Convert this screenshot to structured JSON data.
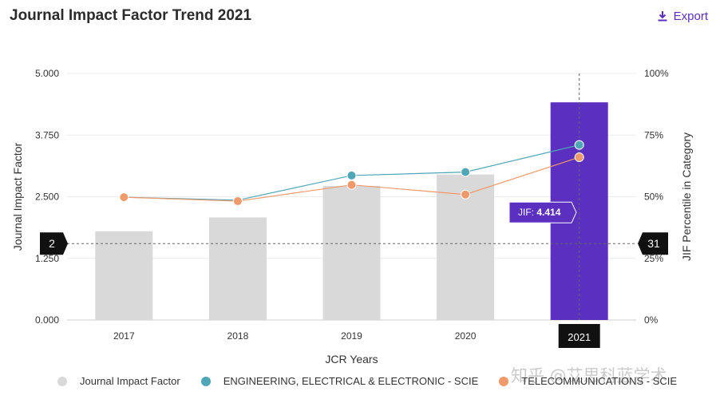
{
  "header": {
    "title": "Journal Impact Factor Trend 2021",
    "export_label": "Export"
  },
  "colors": {
    "bar": "#d9d9d9",
    "bar_highlight": "#5b2fc0",
    "engineering": "#4ea6b7",
    "telecom": "#f0996a",
    "accent": "#5b2fc0"
  },
  "chart_data": {
    "type": "bar",
    "title": "Journal Impact Factor Trend 2021",
    "xlabel": "JCR Years",
    "ylabel": "Journal Impact Factor",
    "y2label": "JIF Percentile in Category",
    "categories": [
      "2017",
      "2018",
      "2019",
      "2020",
      "2021"
    ],
    "ylim": [
      0,
      5
    ],
    "y_ticks": [
      "0.000",
      "1.250",
      "2.500",
      "3.750",
      "5.000"
    ],
    "y2lim": [
      0,
      100
    ],
    "y2_ticks": [
      "0%",
      "25%",
      "50%",
      "75%",
      "100%"
    ],
    "series": [
      {
        "name": "Journal Impact Factor",
        "kind": "bar",
        "values": [
          1.8,
          2.08,
          2.72,
          2.95,
          4.414
        ]
      },
      {
        "name": "ENGINEERING, ELECTRICAL & ELECTRONIC - SCIE",
        "kind": "line",
        "axis": "right",
        "values": [
          49.8,
          48.6,
          58.6,
          60.0,
          71.0
        ]
      },
      {
        "name": "TELECOMMUNICATIONS - SCIE",
        "kind": "line",
        "axis": "right",
        "values": [
          49.8,
          48.2,
          54.8,
          50.9,
          66.0
        ]
      }
    ],
    "highlight": {
      "category": "2021",
      "tooltip_prefix": "JIF:",
      "tooltip_value": "4.414"
    },
    "crosshair": {
      "y_value": 1.55,
      "left_label": "2",
      "right_label": "31"
    },
    "legend": [
      "Journal Impact Factor",
      "ENGINEERING, ELECTRICAL & ELECTRONIC - SCIE",
      "TELECOMMUNICATIONS - SCIE"
    ]
  },
  "watermark": "知乎 @艾思科蓝学术"
}
